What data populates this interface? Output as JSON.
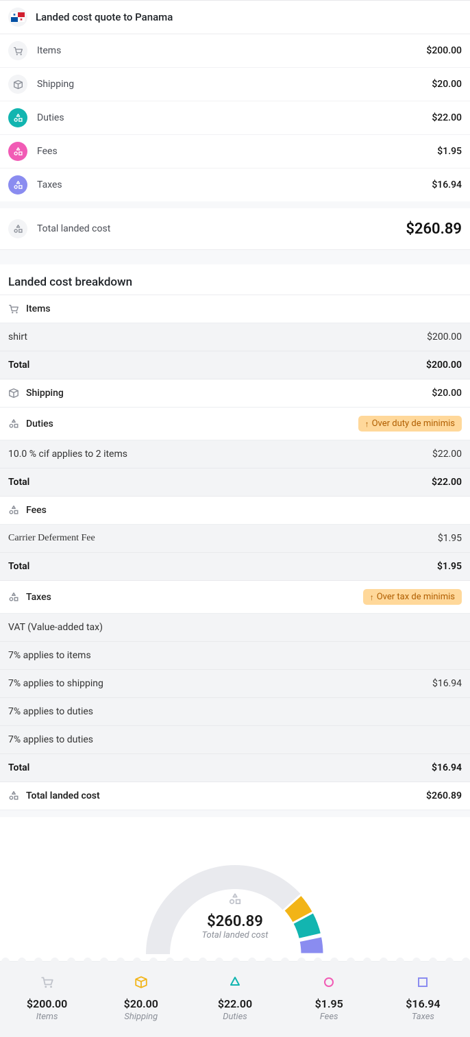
{
  "header": {
    "title": "Landed cost quote to Panama"
  },
  "summary": {
    "items": {
      "label": "Items",
      "value": "$200.00"
    },
    "shipping": {
      "label": "Shipping",
      "value": "$20.00"
    },
    "duties": {
      "label": "Duties",
      "value": "$22.00"
    },
    "fees": {
      "label": "Fees",
      "value": "$1.95"
    },
    "taxes": {
      "label": "Taxes",
      "value": "$16.94"
    },
    "total": {
      "label": "Total landed cost",
      "value": "$260.89"
    }
  },
  "breakdown": {
    "title": "Landed cost breakdown",
    "items_header": "Items",
    "items": {
      "shirt_label": "shirt",
      "shirt_value": "$200.00",
      "total_label": "Total",
      "total_value": "$200.00"
    },
    "shipping": {
      "label": "Shipping",
      "value": "$20.00"
    },
    "duties": {
      "label": "Duties",
      "badge": "Over duty de minimis",
      "line_label": "10.0 % cif applies to 2 items",
      "line_value": "$22.00",
      "total_label": "Total",
      "total_value": "$22.00"
    },
    "fees": {
      "label": "Fees",
      "line_label": "Carrier Deferment Fee",
      "line_value": "$1.95",
      "total_label": "Total",
      "total_value": "$1.95"
    },
    "taxes": {
      "label": "Taxes",
      "badge": "Over tax de minimis",
      "vat_label": "VAT (Value-added tax)",
      "l1": "7% applies to items",
      "l2": "7% applies to shipping",
      "l2_value": "$16.94",
      "l3": "7% applies to duties",
      "l4": "7% applies to duties",
      "total_label": "Total",
      "total_value": "$16.94"
    },
    "grand": {
      "label": "Total landed cost",
      "value": "$260.89"
    }
  },
  "chart": {
    "center_value": "$260.89",
    "center_label": "Total landed cost",
    "arc_background": "#e9eaee",
    "segments": [
      {
        "key": "items",
        "value": 200.0,
        "color": "#e9eaee"
      },
      {
        "key": "shipping",
        "value": 20.0,
        "color": "#f2b417"
      },
      {
        "key": "duties",
        "value": 22.0,
        "color": "#12b5b0"
      },
      {
        "key": "fees",
        "value": 1.95,
        "color": "#f15bb5"
      },
      {
        "key": "taxes",
        "value": 16.94,
        "color": "#8a8cf0"
      }
    ],
    "cols": {
      "items": {
        "amount": "$200.00",
        "label": "Items"
      },
      "shipping": {
        "amount": "$20.00",
        "label": "Shipping"
      },
      "duties": {
        "amount": "$22.00",
        "label": "Duties"
      },
      "fees": {
        "amount": "$1.95",
        "label": "Fees"
      },
      "taxes": {
        "amount": "$16.94",
        "label": "Taxes"
      }
    }
  },
  "colors": {
    "teal": "#12b5b0",
    "pink": "#f15bb5",
    "indigo": "#8a8cf0",
    "yellow": "#f2b417",
    "gray": "#c0c3cb",
    "badge_bg": "#ffd89a",
    "badge_fg": "#b05e00"
  }
}
